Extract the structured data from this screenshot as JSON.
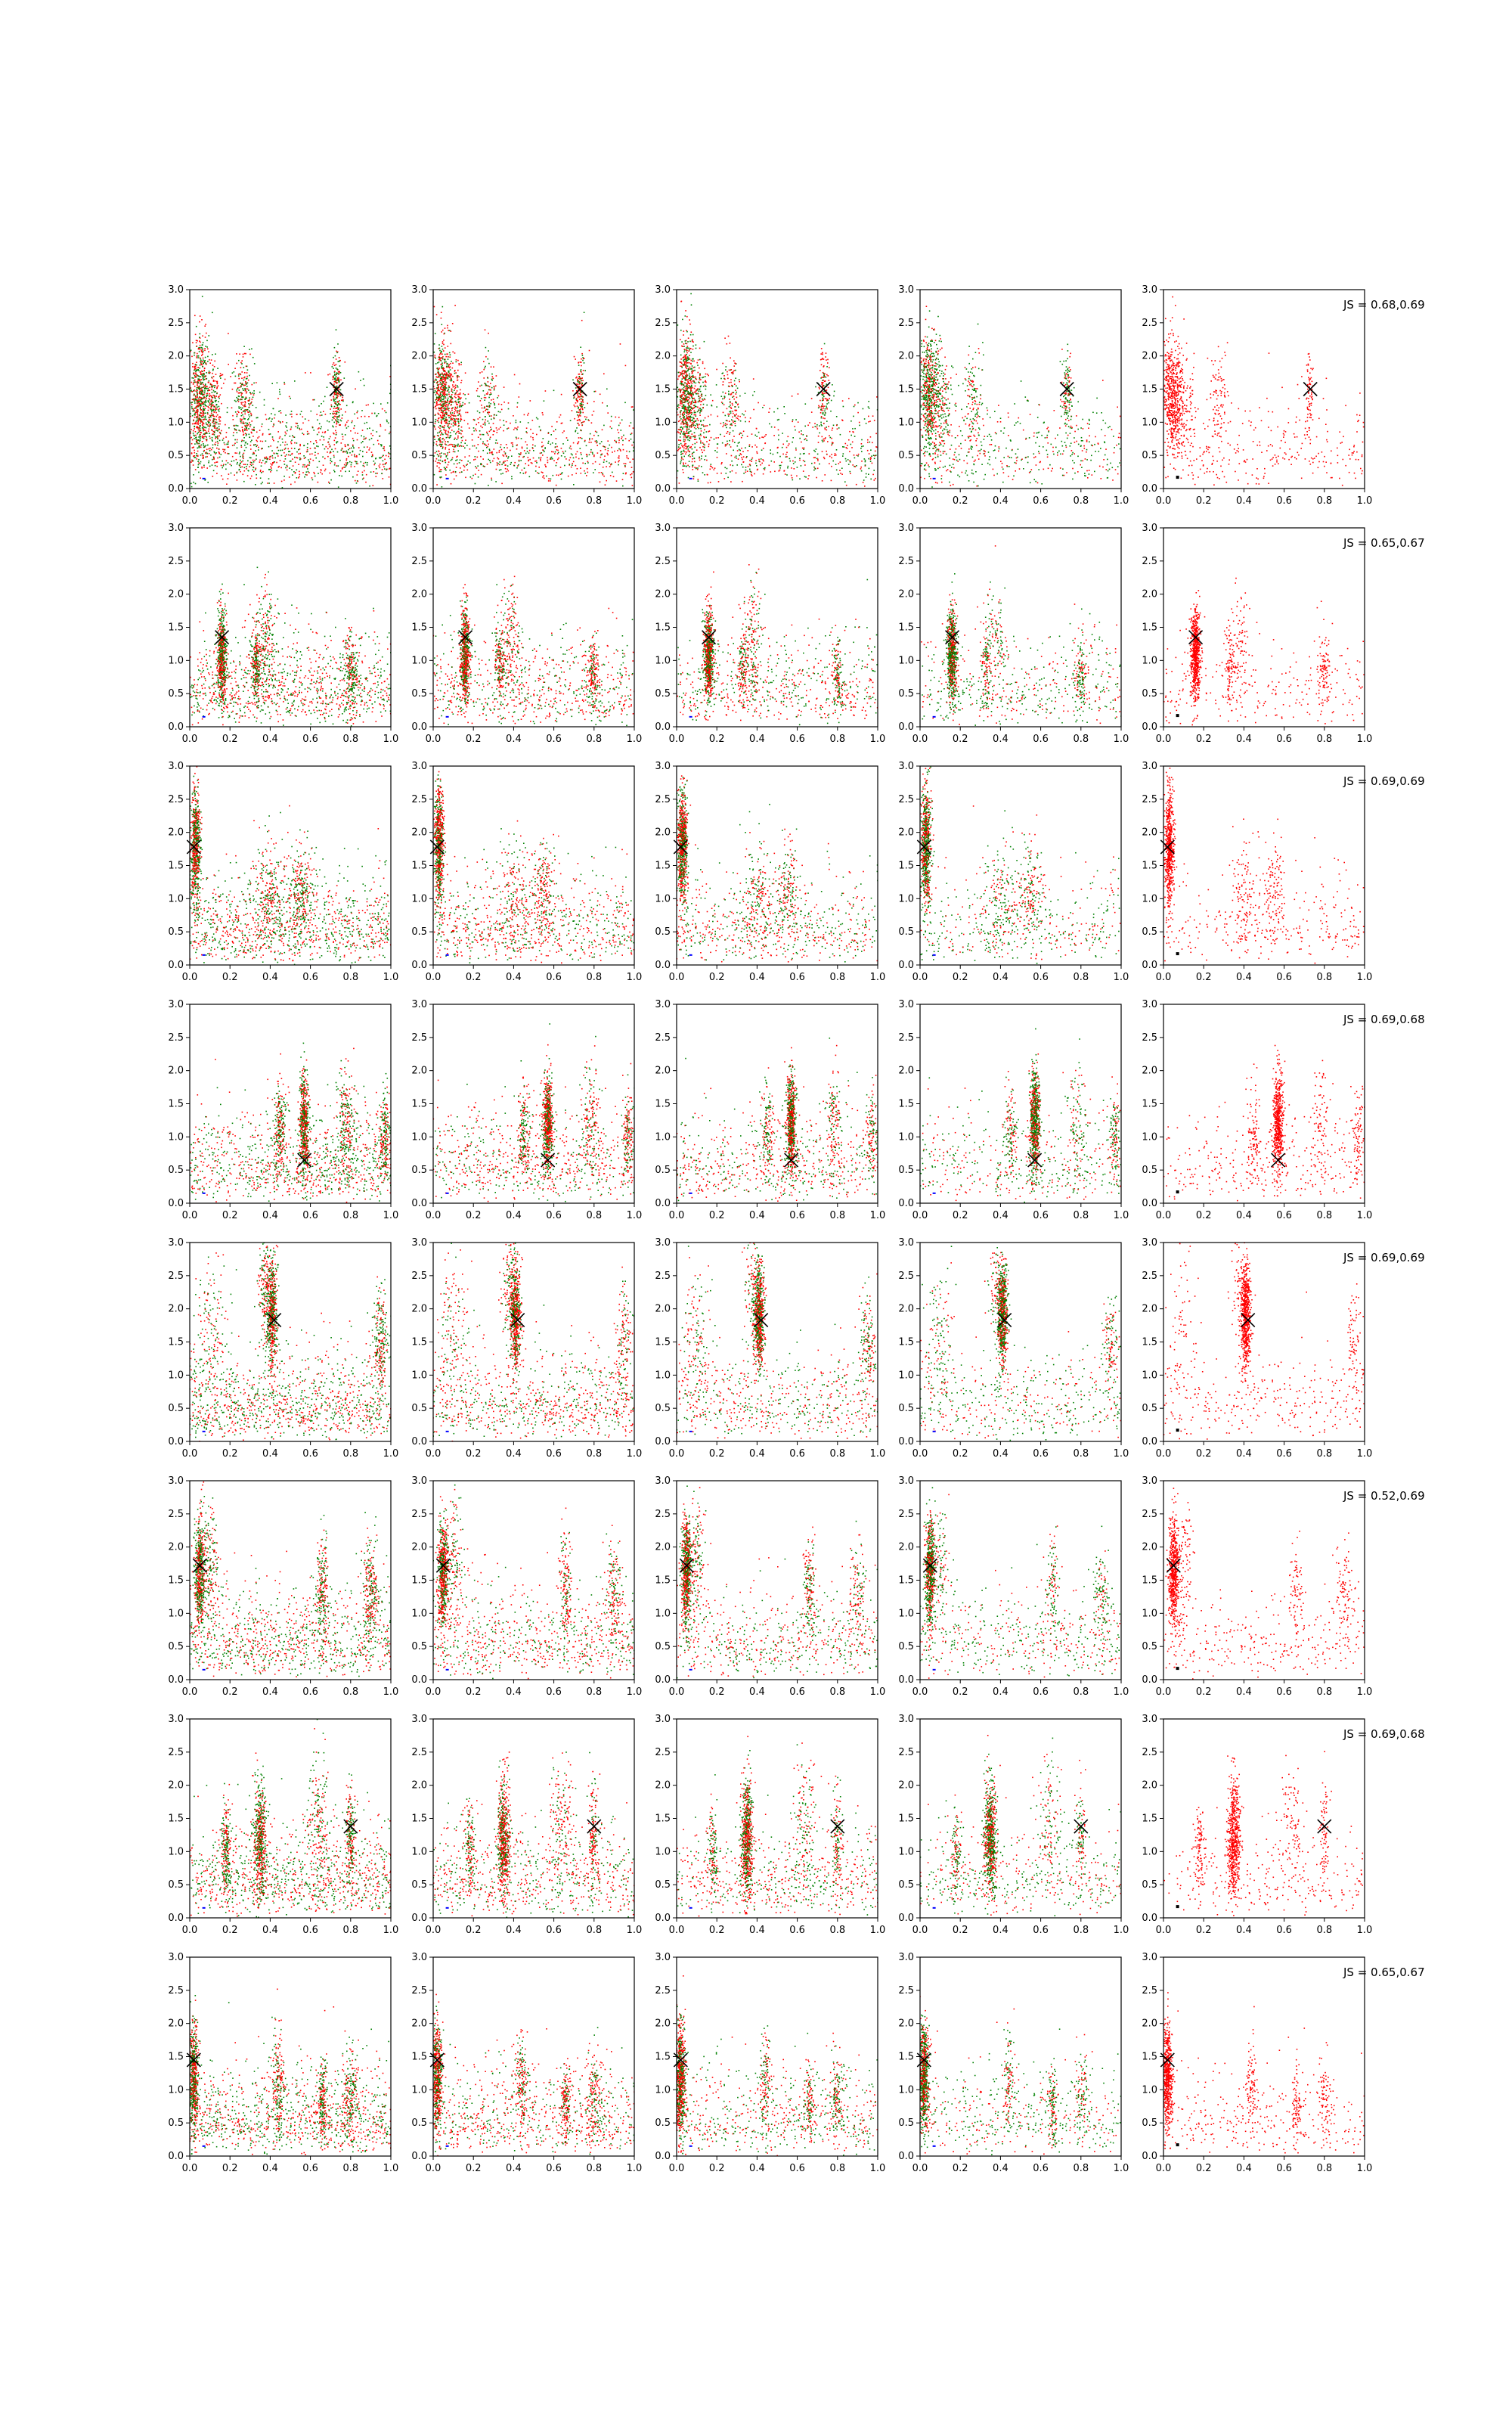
{
  "chart_data": {
    "type": "scatter",
    "layout": {
      "rows": 8,
      "cols": 5
    },
    "xlim": [
      0,
      1
    ],
    "ylim": [
      0,
      3
    ],
    "x_ticks": [
      "0.0",
      "0.2",
      "0.4",
      "0.6",
      "0.8",
      "1.0"
    ],
    "y_ticks": [
      "0.0",
      "0.5",
      "1.0",
      "1.5",
      "2.0",
      "2.5",
      "3.0"
    ],
    "colors": {
      "green": "#008000",
      "red": "#ff0000",
      "blue": "#0000ff",
      "black": "#000000"
    },
    "rows": [
      {
        "js_label": "JS = 0.68,0.69",
        "target": [
          0.73,
          1.5
        ],
        "modes": [
          {
            "x": 0.05,
            "y": 1.4,
            "w": 0.025,
            "h": 0.45
          },
          {
            "x": 0.27,
            "y": 1.3,
            "w": 0.025,
            "h": 0.4
          },
          {
            "x": 0.12,
            "y": 1.2,
            "w": 0.02,
            "h": 0.35
          },
          {
            "x": 0.73,
            "y": 1.45,
            "w": 0.012,
            "h": 0.3
          }
        ]
      },
      {
        "js_label": "JS = 0.65,0.67",
        "target": [
          0.16,
          1.35
        ],
        "modes": [
          {
            "x": 0.16,
            "y": 1.1,
            "w": 0.012,
            "h": 0.35
          },
          {
            "x": 0.38,
            "y": 1.3,
            "w": 0.025,
            "h": 0.45
          },
          {
            "x": 0.33,
            "y": 0.9,
            "w": 0.012,
            "h": 0.3
          },
          {
            "x": 0.8,
            "y": 0.8,
            "w": 0.015,
            "h": 0.3
          }
        ]
      },
      {
        "js_label": "JS = 0.69,0.69",
        "target": [
          0.02,
          1.78
        ],
        "modes": [
          {
            "x": 0.03,
            "y": 1.8,
            "w": 0.012,
            "h": 0.45
          },
          {
            "x": 0.4,
            "y": 1.0,
            "w": 0.04,
            "h": 0.45
          },
          {
            "x": 0.55,
            "y": 1.1,
            "w": 0.03,
            "h": 0.4
          }
        ]
      },
      {
        "js_label": "JS = 0.69,0.68",
        "target": [
          0.57,
          0.65
        ],
        "modes": [
          {
            "x": 0.57,
            "y": 1.2,
            "w": 0.012,
            "h": 0.4
          },
          {
            "x": 0.45,
            "y": 1.1,
            "w": 0.015,
            "h": 0.35
          },
          {
            "x": 0.78,
            "y": 1.2,
            "w": 0.025,
            "h": 0.45
          },
          {
            "x": 0.97,
            "y": 1.0,
            "w": 0.015,
            "h": 0.35
          }
        ]
      },
      {
        "js_label": "JS = 0.69,0.69",
        "target": [
          0.42,
          1.83
        ],
        "modes": [
          {
            "x": 0.41,
            "y": 1.9,
            "w": 0.012,
            "h": 0.4
          },
          {
            "x": 0.38,
            "y": 2.3,
            "w": 0.02,
            "h": 0.4
          },
          {
            "x": 0.95,
            "y": 1.5,
            "w": 0.02,
            "h": 0.4
          },
          {
            "x": 0.1,
            "y": 1.6,
            "w": 0.04,
            "h": 0.6
          }
        ]
      },
      {
        "js_label": "JS = 0.52,0.69",
        "target": [
          0.05,
          1.72
        ],
        "modes": [
          {
            "x": 0.05,
            "y": 1.6,
            "w": 0.012,
            "h": 0.4
          },
          {
            "x": 0.1,
            "y": 1.8,
            "w": 0.025,
            "h": 0.45
          },
          {
            "x": 0.66,
            "y": 1.4,
            "w": 0.015,
            "h": 0.4
          },
          {
            "x": 0.9,
            "y": 1.3,
            "w": 0.02,
            "h": 0.4
          }
        ]
      },
      {
        "js_label": "JS = 0.69,0.68",
        "target": [
          0.8,
          1.38
        ],
        "modes": [
          {
            "x": 0.35,
            "y": 1.2,
            "w": 0.015,
            "h": 0.45
          },
          {
            "x": 0.8,
            "y": 1.2,
            "w": 0.012,
            "h": 0.4
          },
          {
            "x": 0.18,
            "y": 1.0,
            "w": 0.012,
            "h": 0.35
          },
          {
            "x": 0.64,
            "y": 1.5,
            "w": 0.03,
            "h": 0.45
          }
        ]
      },
      {
        "js_label": "JS = 0.65,0.67",
        "target": [
          0.02,
          1.45
        ],
        "modes": [
          {
            "x": 0.02,
            "y": 1.2,
            "w": 0.012,
            "h": 0.4
          },
          {
            "x": 0.44,
            "y": 1.1,
            "w": 0.015,
            "h": 0.4
          },
          {
            "x": 0.66,
            "y": 0.8,
            "w": 0.012,
            "h": 0.3
          },
          {
            "x": 0.8,
            "y": 0.9,
            "w": 0.02,
            "h": 0.35
          }
        ]
      }
    ]
  }
}
